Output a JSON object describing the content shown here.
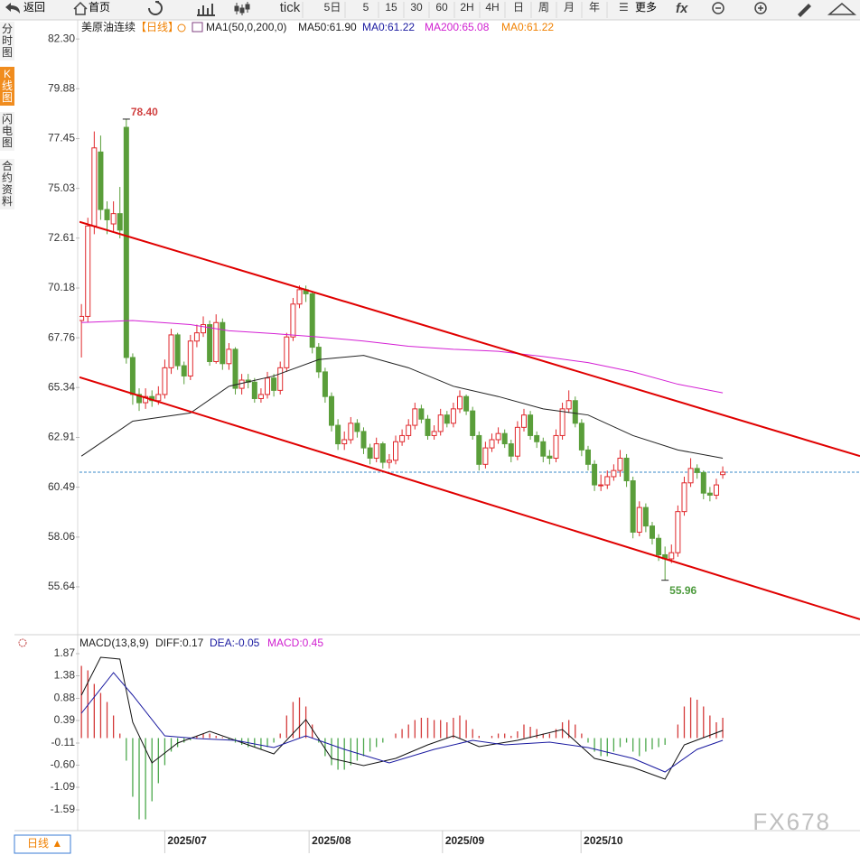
{
  "toolbar": {
    "back": "返回",
    "home": "首页",
    "periods": [
      "tick",
      "5日",
      "5",
      "15",
      "30",
      "60",
      "2H",
      "4H",
      "日",
      "周",
      "月",
      "年"
    ],
    "more": "更多"
  },
  "sidebar": [
    "分时图",
    "K线图",
    "闪电图",
    "合约资料"
  ],
  "header": {
    "title": "美原油连续",
    "period_label": "【日线】"
  },
  "chart_data": [
    {
      "type": "candlestick",
      "legend": [
        {
          "text": "MA1(50,0,200,0)",
          "color": "#222222"
        },
        {
          "text": "MA50:61.90",
          "color": "#222222"
        },
        {
          "text": "MA0:61.22",
          "color": "#1a1aa0"
        },
        {
          "text": "MA200:65.08",
          "color": "#d020d0"
        },
        {
          "text": "MA0:61.22",
          "color": "#f08000"
        }
      ],
      "xlim": [
        -0.3,
        121.4
      ],
      "ylim": [
        53.31,
        83.23
      ],
      "yticks": [
        {
          "value": 82.3,
          "label": "82.30"
        },
        79.88,
        77.45,
        75.03,
        72.61,
        70.18,
        67.76,
        65.34,
        62.91,
        60.49,
        58.06,
        55.64
      ],
      "grid": false,
      "up_color": "#e0282c",
      "down_color": "#5a9e3a",
      "candles": [
        [
          68.6,
          69.4,
          66.8,
          68.8
        ],
        [
          68.8,
          73.6,
          68.5,
          73.2
        ],
        [
          73.2,
          77.8,
          72.8,
          77.0
        ],
        [
          76.8,
          77.6,
          73.5,
          74.0
        ],
        [
          74.0,
          74.4,
          72.8,
          73.5
        ],
        [
          73.3,
          74.4,
          72.9,
          73.8
        ],
        [
          73.8,
          75.1,
          72.6,
          73.0
        ],
        [
          78.0,
          78.4,
          66.5,
          66.8
        ],
        [
          66.8,
          67.0,
          64.5,
          65.0
        ],
        [
          65.0,
          65.3,
          64.2,
          64.6
        ],
        [
          64.6,
          65.3,
          64.3,
          64.9
        ],
        [
          64.9,
          65.2,
          64.4,
          64.7
        ],
        [
          64.7,
          65.4,
          64.5,
          65.0
        ],
        [
          65.0,
          66.7,
          64.8,
          66.3
        ],
        [
          66.3,
          68.2,
          66.0,
          67.9
        ],
        [
          67.9,
          68.0,
          66.2,
          66.4
        ],
        [
          66.4,
          66.6,
          65.5,
          65.9
        ],
        [
          65.9,
          67.9,
          65.7,
          67.6
        ],
        [
          67.6,
          68.4,
          67.3,
          68.0
        ],
        [
          68.0,
          68.8,
          67.8,
          68.4
        ],
        [
          68.4,
          68.6,
          66.4,
          66.6
        ],
        [
          66.6,
          68.9,
          66.5,
          68.5
        ],
        [
          68.5,
          68.7,
          66.2,
          66.5
        ],
        [
          66.5,
          67.5,
          66.2,
          67.2
        ],
        [
          67.2,
          67.3,
          65.0,
          65.3
        ],
        [
          65.3,
          66.0,
          65.0,
          65.7
        ],
        [
          65.7,
          66.0,
          65.3,
          65.6
        ],
        [
          65.6,
          65.8,
          64.6,
          64.8
        ],
        [
          64.8,
          65.3,
          64.6,
          65.0
        ],
        [
          65.0,
          66.1,
          64.8,
          65.8
        ],
        [
          65.8,
          66.0,
          64.9,
          65.2
        ],
        [
          65.2,
          66.6,
          65.0,
          66.3
        ],
        [
          66.3,
          68.0,
          66.1,
          67.8
        ],
        [
          67.8,
          69.7,
          67.6,
          69.4
        ],
        [
          69.4,
          70.3,
          69.2,
          70.1
        ],
        [
          70.1,
          70.3,
          69.5,
          69.9
        ],
        [
          69.9,
          70.0,
          67.0,
          67.3
        ],
        [
          67.3,
          67.5,
          65.8,
          66.1
        ],
        [
          66.1,
          66.3,
          64.6,
          64.9
        ],
        [
          64.9,
          65.1,
          63.2,
          63.5
        ],
        [
          63.5,
          63.8,
          62.3,
          62.6
        ],
        [
          62.6,
          63.2,
          62.3,
          62.8
        ],
        [
          62.8,
          63.9,
          62.6,
          63.6
        ],
        [
          63.6,
          63.8,
          62.9,
          63.2
        ],
        [
          63.2,
          63.4,
          62.1,
          62.4
        ],
        [
          62.4,
          62.6,
          61.6,
          61.9
        ],
        [
          61.9,
          62.9,
          61.7,
          62.6
        ],
        [
          62.6,
          62.7,
          61.4,
          61.7
        ],
        [
          61.7,
          62.1,
          61.4,
          61.8
        ],
        [
          61.8,
          63.0,
          61.6,
          62.7
        ],
        [
          62.7,
          63.3,
          62.5,
          63.0
        ],
        [
          63.0,
          63.8,
          62.8,
          63.5
        ],
        [
          63.5,
          64.6,
          63.3,
          64.3
        ],
        [
          64.3,
          64.5,
          63.6,
          63.8
        ],
        [
          63.8,
          64.0,
          62.8,
          63.0
        ],
        [
          63.0,
          63.5,
          62.8,
          63.2
        ],
        [
          63.2,
          64.3,
          63.0,
          64.0
        ],
        [
          64.0,
          64.2,
          63.4,
          63.6
        ],
        [
          63.6,
          64.6,
          63.4,
          64.3
        ],
        [
          64.3,
          65.2,
          64.1,
          64.9
        ],
        [
          64.9,
          65.0,
          64.0,
          64.2
        ],
        [
          64.2,
          64.4,
          62.8,
          63.0
        ],
        [
          63.0,
          63.2,
          61.3,
          61.6
        ],
        [
          61.6,
          62.7,
          61.4,
          62.4
        ],
        [
          62.4,
          63.1,
          62.2,
          62.8
        ],
        [
          62.8,
          63.4,
          62.6,
          63.1
        ],
        [
          63.1,
          63.3,
          62.4,
          62.6
        ],
        [
          62.6,
          62.8,
          61.7,
          62.0
        ],
        [
          62.0,
          63.7,
          61.8,
          63.4
        ],
        [
          63.4,
          64.3,
          63.2,
          64.0
        ],
        [
          64.0,
          64.2,
          62.8,
          63.0
        ],
        [
          63.0,
          63.2,
          62.4,
          62.7
        ],
        [
          62.7,
          62.9,
          61.7,
          62.0
        ],
        [
          62.0,
          62.3,
          61.6,
          61.9
        ],
        [
          61.9,
          63.3,
          61.7,
          63.0
        ],
        [
          63.0,
          64.6,
          62.8,
          64.3
        ],
        [
          64.3,
          65.2,
          64.1,
          64.7
        ],
        [
          64.7,
          64.9,
          63.4,
          63.6
        ],
        [
          63.6,
          63.8,
          62.0,
          62.3
        ],
        [
          62.3,
          62.5,
          61.3,
          61.6
        ],
        [
          61.6,
          61.8,
          60.3,
          60.6
        ],
        [
          60.6,
          61.1,
          60.3,
          60.6
        ],
        [
          60.6,
          61.3,
          60.4,
          61.0
        ],
        [
          61.0,
          61.6,
          60.8,
          61.3
        ],
        [
          61.3,
          62.3,
          61.0,
          61.9
        ],
        [
          61.9,
          62.1,
          60.5,
          60.8
        ],
        [
          60.8,
          61.0,
          58.0,
          58.3
        ],
        [
          58.3,
          59.8,
          58.1,
          59.5
        ],
        [
          59.5,
          59.7,
          58.3,
          58.6
        ],
        [
          58.6,
          58.8,
          57.7,
          58.0
        ],
        [
          58.0,
          58.2,
          56.9,
          57.2
        ],
        [
          57.2,
          57.6,
          55.96,
          57.0
        ],
        [
          57.0,
          57.7,
          56.8,
          57.3
        ],
        [
          57.3,
          59.6,
          57.1,
          59.3
        ],
        [
          59.3,
          61.0,
          59.1,
          60.7
        ],
        [
          60.7,
          61.9,
          60.5,
          61.4
        ],
        [
          61.4,
          61.6,
          60.9,
          61.2
        ],
        [
          61.2,
          61.3,
          59.9,
          60.2
        ],
        [
          60.2,
          60.5,
          59.8,
          60.1
        ],
        [
          60.1,
          60.9,
          59.9,
          60.6
        ],
        [
          61.1,
          61.5,
          60.9,
          61.22
        ]
      ],
      "series": [
        {
          "color": "#222222",
          "x": [
            0,
            8,
            17,
            23,
            30,
            37,
            44,
            51,
            58,
            65,
            72,
            79,
            86,
            93,
            100
          ],
          "values": [
            62.0,
            63.7,
            64.1,
            65.4,
            65.9,
            66.7,
            66.9,
            66.3,
            65.4,
            64.9,
            64.3,
            64.0,
            63.0,
            62.3,
            61.9
          ]
        },
        {
          "color": "#d41fd4",
          "x": [
            0,
            8,
            17,
            23,
            30,
            37,
            44,
            51,
            58,
            65,
            72,
            79,
            86,
            93,
            100
          ],
          "values": [
            68.5,
            68.6,
            68.4,
            68.1,
            67.96,
            67.8,
            67.6,
            67.35,
            67.2,
            67.1,
            66.85,
            66.55,
            66.1,
            65.5,
            65.08
          ]
        }
      ],
      "trendlines": {
        "color": "#e00000",
        "lines": [
          {
            "x": [
              -0.3,
              121.4
            ],
            "y": [
              73.4,
              62.0
            ]
          },
          {
            "x": [
              -0.3,
              121.4
            ],
            "y": [
              65.84,
              54.06
            ]
          }
        ]
      },
      "last_price_line": {
        "value": 61.22,
        "color": "#3a8ac8"
      },
      "annotations": [
        {
          "x": 7,
          "value": 78.4,
          "label": "78.40",
          "color": "#d04040"
        },
        {
          "x": 91,
          "value": 55.96,
          "label": "55.96",
          "color": "#4c9a3c"
        }
      ]
    },
    {
      "type": "macd",
      "legend": [
        {
          "text": "MACD(13,8,9)",
          "color": "#222222"
        },
        {
          "text": "DIFF:0.17",
          "color": "#222222"
        },
        {
          "text": "DEA:-0.05",
          "color": "#1a1aa0"
        },
        {
          "text": "MACD:0.45",
          "color": "#d020d0"
        }
      ],
      "xlim": [
        -0.3,
        121.4
      ],
      "ylim": [
        -2.05,
        2.25
      ],
      "yticks": [
        1.87,
        1.38,
        0.88,
        0.39,
        -0.11,
        {
          "value": -0.6,
          "label": "-0.60"
        },
        -1.09,
        -1.59
      ],
      "xticks": [
        {
          "value": 13,
          "label": "2025/07"
        },
        {
          "value": 35.5,
          "label": "2025/08"
        },
        {
          "value": 56.3,
          "label": "2025/09"
        },
        {
          "value": 77.9,
          "label": "2025/10"
        }
      ],
      "up_color": "#d43a3a",
      "down_color": "#4ca84c",
      "values": [
        1.6,
        1.5,
        1.2,
        1.0,
        0.8,
        0.5,
        0.1,
        -0.5,
        -1.3,
        -1.8,
        -1.8,
        -1.4,
        -1.0,
        -0.6,
        -0.3,
        -0.2,
        -0.1,
        -0.05,
        0.05,
        0.1,
        0.1,
        0.05,
        0.02,
        -0.05,
        -0.1,
        -0.15,
        -0.2,
        -0.2,
        -0.25,
        -0.2,
        -0.1,
        0.1,
        0.5,
        0.8,
        0.9,
        0.7,
        0.3,
        -0.1,
        -0.4,
        -0.6,
        -0.7,
        -0.7,
        -0.6,
        -0.5,
        -0.4,
        -0.3,
        -0.2,
        -0.1,
        0.0,
        0.1,
        0.2,
        0.3,
        0.4,
        0.45,
        0.45,
        0.4,
        0.4,
        0.35,
        0.45,
        0.5,
        0.4,
        0.2,
        0.05,
        0.0,
        0.05,
        0.1,
        0.1,
        0.05,
        0.15,
        0.3,
        0.25,
        0.2,
        0.1,
        0.1,
        0.2,
        0.35,
        0.4,
        0.3,
        0.1,
        -0.1,
        -0.3,
        -0.4,
        -0.4,
        -0.3,
        -0.2,
        -0.1,
        -0.3,
        -0.4,
        -0.3,
        -0.25,
        -0.2,
        -0.15,
        0.0,
        0.3,
        0.7,
        0.9,
        0.85,
        0.7,
        0.5,
        0.35,
        0.45
      ],
      "series": [
        {
          "color": "#111111",
          "x": [
            0,
            3,
            6,
            8,
            11,
            15,
            20,
            24,
            30,
            35,
            39,
            44,
            49,
            54,
            58,
            62,
            68,
            75,
            80,
            86,
            91,
            94,
            100
          ],
          "values": [
            0.95,
            1.79,
            1.75,
            0.35,
            -0.55,
            -0.11,
            0.15,
            -0.05,
            -0.35,
            0.41,
            -0.45,
            -0.61,
            -0.45,
            -0.15,
            0.05,
            -0.19,
            -0.05,
            0.19,
            -0.45,
            -0.65,
            -0.91,
            -0.15,
            0.17
          ]
        },
        {
          "color": "#1a1aa0",
          "x": [
            0,
            5,
            8,
            13,
            18,
            24,
            30,
            35,
            41,
            48,
            55,
            61,
            66,
            73,
            79,
            86,
            91,
            96,
            100
          ],
          "values": [
            0.55,
            1.45,
            0.95,
            0.05,
            -0.01,
            -0.05,
            -0.21,
            0.05,
            -0.25,
            -0.55,
            -0.25,
            -0.05,
            -0.15,
            -0.09,
            -0.21,
            -0.45,
            -0.75,
            -0.25,
            -0.05
          ]
        }
      ]
    }
  ],
  "footer": {
    "tab": "日线 ▲"
  },
  "watermark": "FX678"
}
